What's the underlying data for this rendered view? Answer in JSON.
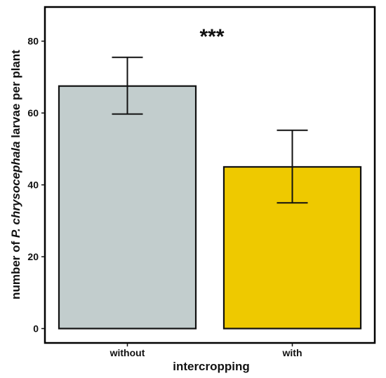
{
  "chart_data": {
    "type": "bar",
    "categories": [
      "without",
      "with"
    ],
    "values": [
      67.5,
      45
    ],
    "errors": [
      {
        "low": 59.7,
        "high": 75.5
      },
      {
        "low": 35,
        "high": 55.2
      }
    ],
    "colors": [
      "#c2cdcd",
      "#eec900"
    ],
    "xlabel": "intercropping",
    "ylabel_parts": [
      "number of ",
      "P. chrysocephala",
      " larvae per plant"
    ],
    "annotation": "***",
    "yticks": [
      0,
      20,
      40,
      60,
      80
    ],
    "ylim": [
      -4,
      89.5
    ],
    "grid": false
  }
}
